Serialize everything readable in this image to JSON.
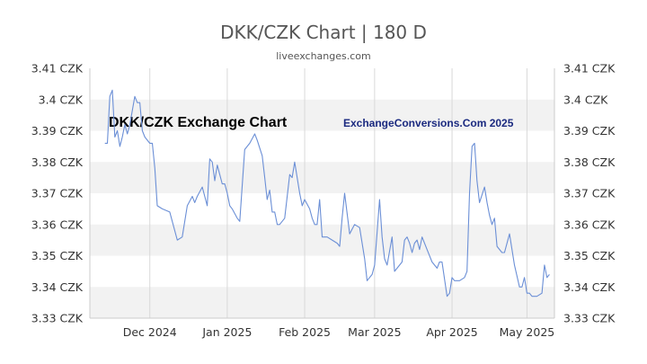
{
  "header": {
    "title": "DKK/CZK Chart | 180 D",
    "subtitle": "liveexchanges.com"
  },
  "watermarks": {
    "left": "DKK/CZK Exchange Chart",
    "right": "ExchangeConversions.Com 2025"
  },
  "colors": {
    "line": "#6b8fd6",
    "band": "#f2f2f2",
    "grid": "#d9d9d9"
  },
  "chart_data": {
    "type": "line",
    "title": "DKK/CZK Chart | 180 D",
    "subtitle": "liveexchanges.com",
    "xlabel": "",
    "ylabel": "",
    "ylim": [
      3.33,
      3.41
    ],
    "y_ticks": [
      3.33,
      3.34,
      3.35,
      3.36,
      3.37,
      3.38,
      3.39,
      3.4,
      3.41
    ],
    "y_tick_labels": [
      "3.33 CZK",
      "3.34 CZK",
      "3.35 CZK",
      "3.36 CZK",
      "3.37 CZK",
      "3.38 CZK",
      "3.39 CZK",
      "3.4 CZK",
      "3.41 CZK"
    ],
    "x_range": [
      "2024-11-07",
      "2025-05-12"
    ],
    "x_ticks": [
      "2024-12-01",
      "2025-01-01",
      "2025-02-01",
      "2025-03-01",
      "2025-04-01",
      "2025-05-01"
    ],
    "x_tick_labels": [
      "Dec 2024",
      "Jan 2025",
      "Feb 2025",
      "Mar 2025",
      "Apr 2025",
      "May 2025"
    ],
    "grid": true,
    "series": [
      {
        "x": [
          "2024-11-13",
          "2024-11-14",
          "2024-11-15",
          "2024-11-16",
          "2024-11-17",
          "2024-11-18",
          "2024-11-19",
          "2024-11-20",
          "2024-11-21",
          "2024-11-22",
          "2024-11-23",
          "2024-11-25",
          "2024-11-26",
          "2024-11-27",
          "2024-11-28",
          "2024-11-29",
          "2024-12-01",
          "2024-12-02",
          "2024-12-03",
          "2024-12-04",
          "2024-12-06",
          "2024-12-09",
          "2024-12-10",
          "2024-12-12",
          "2024-12-14",
          "2024-12-16",
          "2024-12-18",
          "2024-12-19",
          "2024-12-20",
          "2024-12-22",
          "2024-12-24",
          "2024-12-25",
          "2024-12-26",
          "2024-12-27",
          "2024-12-28",
          "2024-12-30",
          "2024-12-31",
          "2025-01-01",
          "2025-01-02",
          "2025-01-03",
          "2025-01-05",
          "2025-01-06",
          "2025-01-08",
          "2025-01-10",
          "2025-01-12",
          "2025-01-13",
          "2025-01-15",
          "2025-01-16",
          "2025-01-17",
          "2025-01-18",
          "2025-01-19",
          "2025-01-20",
          "2025-01-21",
          "2025-01-22",
          "2025-01-23",
          "2025-01-24",
          "2025-01-26",
          "2025-01-27",
          "2025-01-28",
          "2025-01-30",
          "2025-01-31",
          "2025-02-01",
          "2025-02-03",
          "2025-02-04",
          "2025-02-05",
          "2025-02-06",
          "2025-02-07",
          "2025-02-08",
          "2025-02-10",
          "2025-02-12",
          "2025-02-14",
          "2025-02-15",
          "2025-02-16",
          "2025-02-17",
          "2025-02-19",
          "2025-02-21",
          "2025-02-23",
          "2025-02-25",
          "2025-02-26",
          "2025-02-27",
          "2025-02-28",
          "2025-03-01",
          "2025-03-03",
          "2025-03-04",
          "2025-03-05",
          "2025-03-06",
          "2025-03-08",
          "2025-03-09",
          "2025-03-10",
          "2025-03-12",
          "2025-03-13",
          "2025-03-14",
          "2025-03-15",
          "2025-03-16",
          "2025-03-17",
          "2025-03-18",
          "2025-03-19",
          "2025-03-20",
          "2025-03-22",
          "2025-03-24",
          "2025-03-26",
          "2025-03-27",
          "2025-03-28",
          "2025-03-30",
          "2025-03-31",
          "2025-04-01",
          "2025-04-02",
          "2025-04-04",
          "2025-04-06",
          "2025-04-07",
          "2025-04-08",
          "2025-04-09",
          "2025-04-10",
          "2025-04-11",
          "2025-04-12",
          "2025-04-14",
          "2025-04-15",
          "2025-04-16",
          "2025-04-17",
          "2025-04-18",
          "2025-04-19",
          "2025-04-21",
          "2025-04-22",
          "2025-04-24",
          "2025-04-26",
          "2025-04-28",
          "2025-04-29",
          "2025-04-30",
          "2025-05-01",
          "2025-05-02",
          "2025-05-03",
          "2025-05-05",
          "2025-05-07",
          "2025-05-08",
          "2025-05-09",
          "2025-05-10"
        ],
        "y": [
          3.386,
          3.386,
          3.401,
          3.403,
          3.388,
          3.39,
          3.385,
          3.388,
          3.392,
          3.389,
          3.392,
          3.401,
          3.399,
          3.399,
          3.39,
          3.388,
          3.386,
          3.386,
          3.378,
          3.366,
          3.365,
          3.364,
          3.361,
          3.355,
          3.356,
          3.366,
          3.369,
          3.367,
          3.369,
          3.372,
          3.366,
          3.381,
          3.38,
          3.374,
          3.379,
          3.373,
          3.373,
          3.37,
          3.366,
          3.365,
          3.362,
          3.361,
          3.384,
          3.386,
          3.389,
          3.387,
          3.382,
          3.375,
          3.368,
          3.371,
          3.364,
          3.364,
          3.36,
          3.36,
          3.361,
          3.362,
          3.376,
          3.375,
          3.38,
          3.37,
          3.366,
          3.368,
          3.365,
          3.362,
          3.36,
          3.36,
          3.368,
          3.356,
          3.356,
          3.355,
          3.354,
          3.353,
          3.362,
          3.37,
          3.357,
          3.36,
          3.359,
          3.349,
          3.342,
          3.343,
          3.344,
          3.347,
          3.368,
          3.356,
          3.349,
          3.347,
          3.356,
          3.345,
          3.346,
          3.348,
          3.355,
          3.356,
          3.354,
          3.351,
          3.354,
          3.355,
          3.352,
          3.356,
          3.352,
          3.348,
          3.346,
          3.348,
          3.348,
          3.337,
          3.338,
          3.343,
          3.342,
          3.342,
          3.343,
          3.345,
          3.37,
          3.385,
          3.386,
          3.374,
          3.367,
          3.372,
          3.367,
          3.363,
          3.36,
          3.362,
          3.353,
          3.351,
          3.351,
          3.357,
          3.347,
          3.34,
          3.34,
          3.343,
          3.338,
          3.338,
          3.337,
          3.337,
          3.338,
          3.347,
          3.343,
          3.344
        ]
      }
    ]
  }
}
